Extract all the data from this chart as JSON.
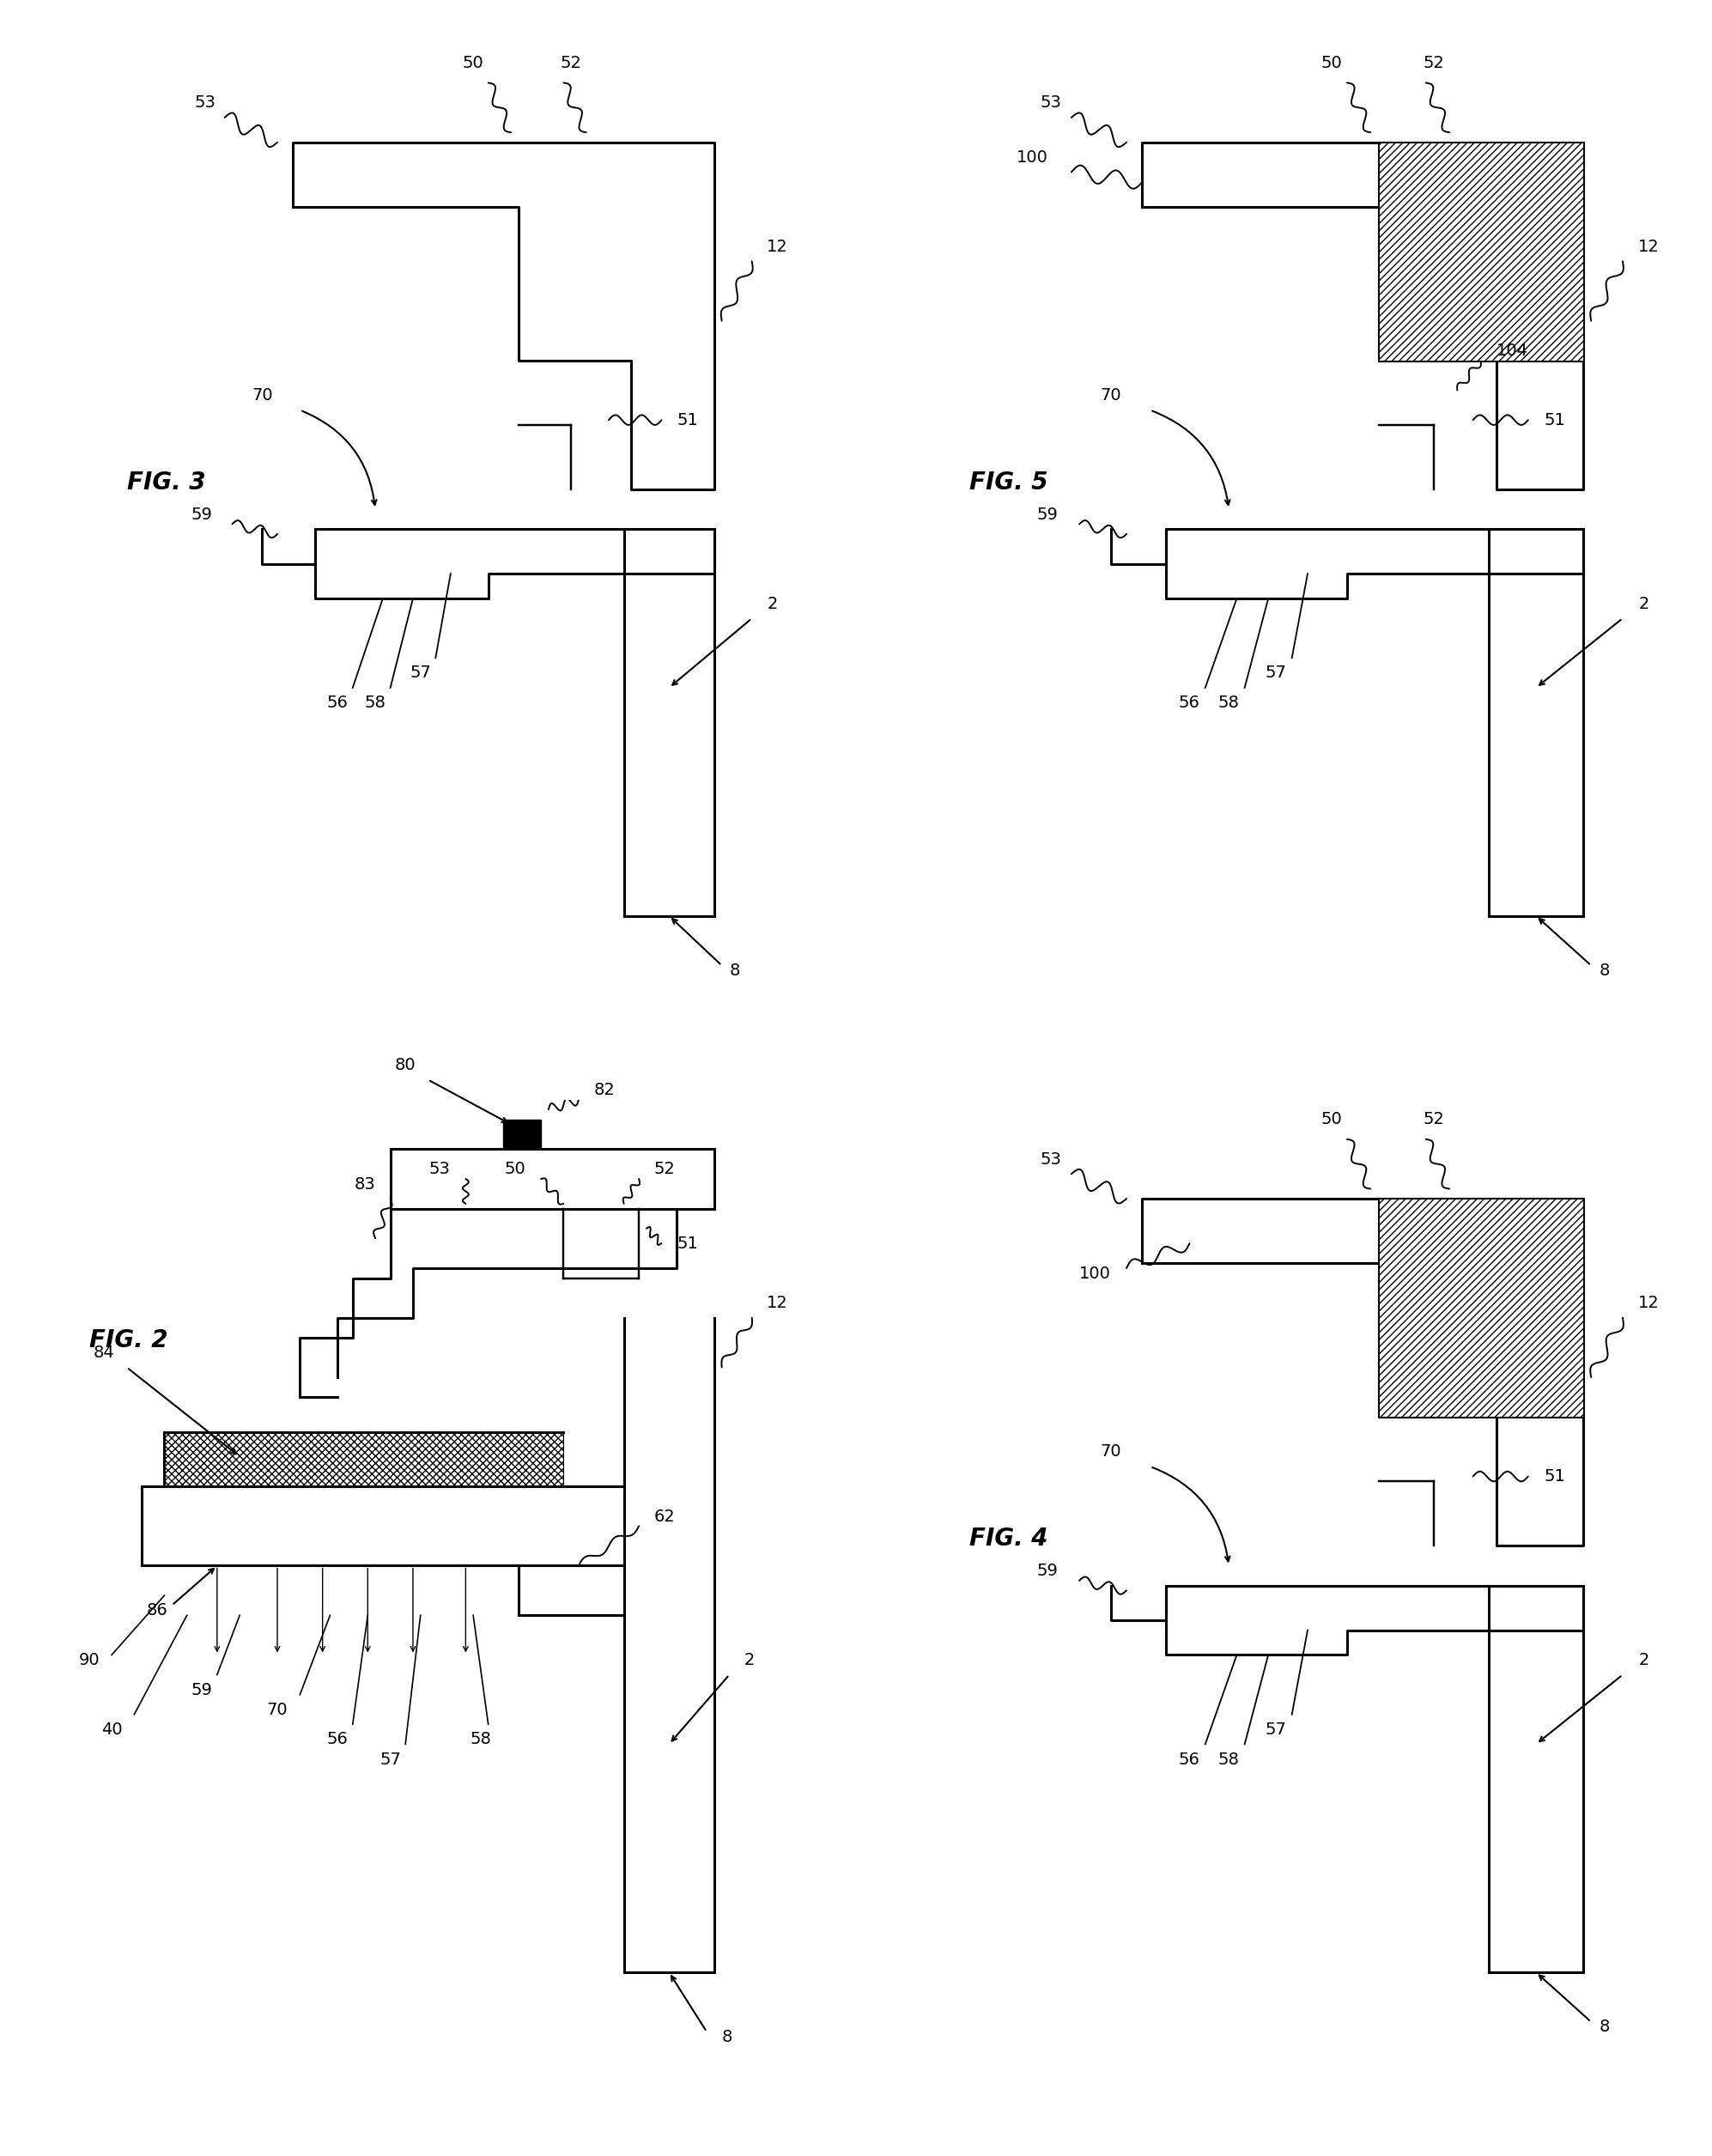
{
  "background_color": "#ffffff",
  "line_color": "#000000",
  "label_fontsize": 14,
  "fig_label_fontsize": 20,
  "figures": [
    "FIG. 3",
    "FIG. 5",
    "FIG. 2",
    "FIG. 4"
  ]
}
